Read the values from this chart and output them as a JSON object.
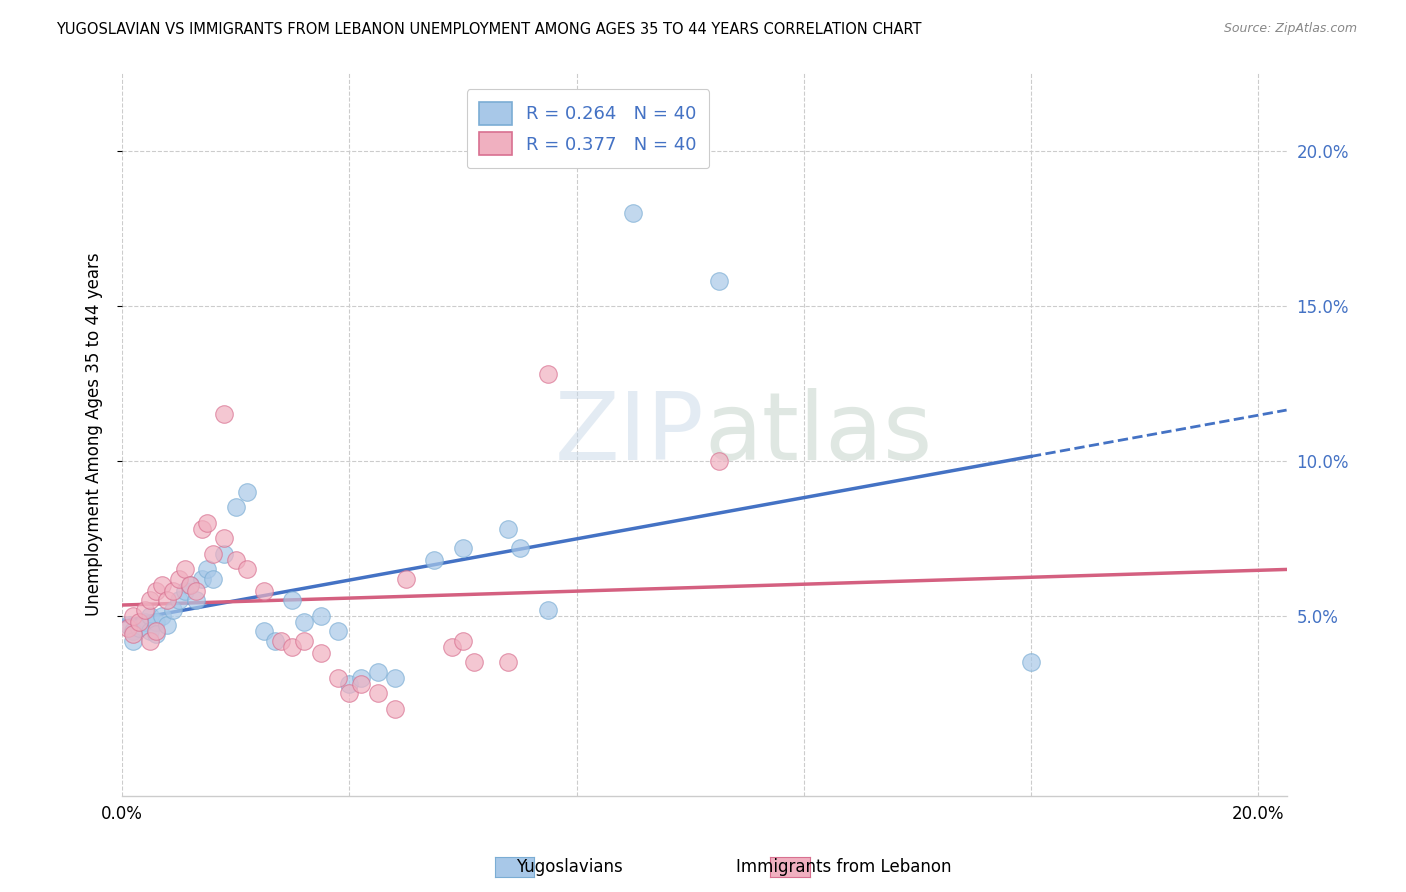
{
  "title": "YUGOSLAVIAN VS IMMIGRANTS FROM LEBANON UNEMPLOYMENT AMONG AGES 35 TO 44 YEARS CORRELATION CHART",
  "source": "Source: ZipAtlas.com",
  "ylabel": "Unemployment Among Ages 35 to 44 years",
  "legend_label1": "Yugoslavians",
  "legend_label2": "Immigrants from Lebanon",
  "legend_R1": "0.264",
  "legend_N1": "40",
  "legend_R2": "0.377",
  "legend_N2": "40",
  "blue_fill": "#a8c8e8",
  "blue_edge": "#7badd4",
  "pink_fill": "#f0b0c0",
  "pink_edge": "#d87090",
  "trend_blue": "#4472c4",
  "trend_pink": "#d46080",
  "watermark_color": "#c8d8e8",
  "bg_color": "#ffffff",
  "grid_color": "#cccccc",
  "right_axis_color": "#4472c4",
  "blue_dots": [
    [
      0.001,
      0.047
    ],
    [
      0.002,
      0.045
    ],
    [
      0.002,
      0.042
    ],
    [
      0.003,
      0.046
    ],
    [
      0.004,
      0.048
    ],
    [
      0.005,
      0.05
    ],
    [
      0.005,
      0.045
    ],
    [
      0.006,
      0.048
    ],
    [
      0.006,
      0.044
    ],
    [
      0.007,
      0.05
    ],
    [
      0.008,
      0.047
    ],
    [
      0.009,
      0.052
    ],
    [
      0.01,
      0.055
    ],
    [
      0.011,
      0.058
    ],
    [
      0.012,
      0.06
    ],
    [
      0.013,
      0.055
    ],
    [
      0.014,
      0.062
    ],
    [
      0.015,
      0.065
    ],
    [
      0.016,
      0.062
    ],
    [
      0.018,
      0.07
    ],
    [
      0.02,
      0.085
    ],
    [
      0.022,
      0.09
    ],
    [
      0.025,
      0.045
    ],
    [
      0.027,
      0.042
    ],
    [
      0.03,
      0.055
    ],
    [
      0.032,
      0.048
    ],
    [
      0.035,
      0.05
    ],
    [
      0.038,
      0.045
    ],
    [
      0.04,
      0.028
    ],
    [
      0.042,
      0.03
    ],
    [
      0.045,
      0.032
    ],
    [
      0.048,
      0.03
    ],
    [
      0.055,
      0.068
    ],
    [
      0.06,
      0.072
    ],
    [
      0.068,
      0.078
    ],
    [
      0.07,
      0.072
    ],
    [
      0.075,
      0.052
    ],
    [
      0.09,
      0.18
    ],
    [
      0.105,
      0.158
    ],
    [
      0.16,
      0.035
    ]
  ],
  "pink_dots": [
    [
      0.001,
      0.046
    ],
    [
      0.002,
      0.05
    ],
    [
      0.002,
      0.044
    ],
    [
      0.003,
      0.048
    ],
    [
      0.004,
      0.052
    ],
    [
      0.005,
      0.055
    ],
    [
      0.005,
      0.042
    ],
    [
      0.006,
      0.058
    ],
    [
      0.006,
      0.045
    ],
    [
      0.007,
      0.06
    ],
    [
      0.008,
      0.055
    ],
    [
      0.009,
      0.058
    ],
    [
      0.01,
      0.062
    ],
    [
      0.011,
      0.065
    ],
    [
      0.012,
      0.06
    ],
    [
      0.013,
      0.058
    ],
    [
      0.014,
      0.078
    ],
    [
      0.015,
      0.08
    ],
    [
      0.016,
      0.07
    ],
    [
      0.018,
      0.075
    ],
    [
      0.02,
      0.068
    ],
    [
      0.022,
      0.065
    ],
    [
      0.025,
      0.058
    ],
    [
      0.028,
      0.042
    ],
    [
      0.03,
      0.04
    ],
    [
      0.032,
      0.042
    ],
    [
      0.035,
      0.038
    ],
    [
      0.038,
      0.03
    ],
    [
      0.04,
      0.025
    ],
    [
      0.042,
      0.028
    ],
    [
      0.045,
      0.025
    ],
    [
      0.048,
      0.02
    ],
    [
      0.05,
      0.062
    ],
    [
      0.058,
      0.04
    ],
    [
      0.06,
      0.042
    ],
    [
      0.062,
      0.035
    ],
    [
      0.068,
      0.035
    ],
    [
      0.075,
      0.128
    ],
    [
      0.105,
      0.1
    ],
    [
      0.018,
      0.115
    ]
  ],
  "xlim": [
    0.0,
    0.205
  ],
  "ylim": [
    -0.008,
    0.225
  ],
  "ytick_vals": [
    0.05,
    0.1,
    0.15,
    0.2
  ],
  "ytick_labels": [
    "5.0%",
    "10.0%",
    "15.0%",
    "20.0%"
  ],
  "xtick_vals": [
    0.0,
    0.04,
    0.08,
    0.12,
    0.16,
    0.2
  ],
  "xtick_labels": [
    "0.0%",
    "",
    "",
    "",
    "",
    "20.0%"
  ]
}
